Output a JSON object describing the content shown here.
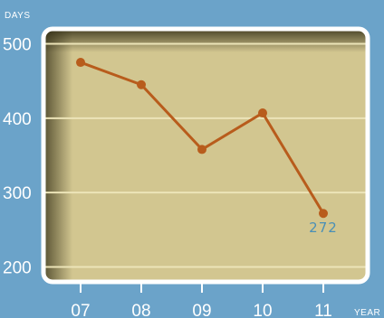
{
  "chart_data": {
    "type": "line",
    "ylabel": "DAYS",
    "xlabel": "YEAR",
    "categories": [
      "07",
      "08",
      "09",
      "10",
      "11"
    ],
    "values": [
      475,
      445,
      358,
      407,
      272
    ],
    "ylim": [
      180,
      520
    ],
    "yticks": [
      200,
      300,
      400,
      500
    ],
    "grid": true,
    "point_labels": [
      {
        "index": 4,
        "text": "272"
      }
    ],
    "colors": {
      "background": "#6ba3c9",
      "plot_fill": "#d2c690",
      "plot_border": "#ffffff",
      "line": "#b85c1c",
      "gridline": "#ece4b8",
      "data_label": "#4a8fb6"
    }
  }
}
